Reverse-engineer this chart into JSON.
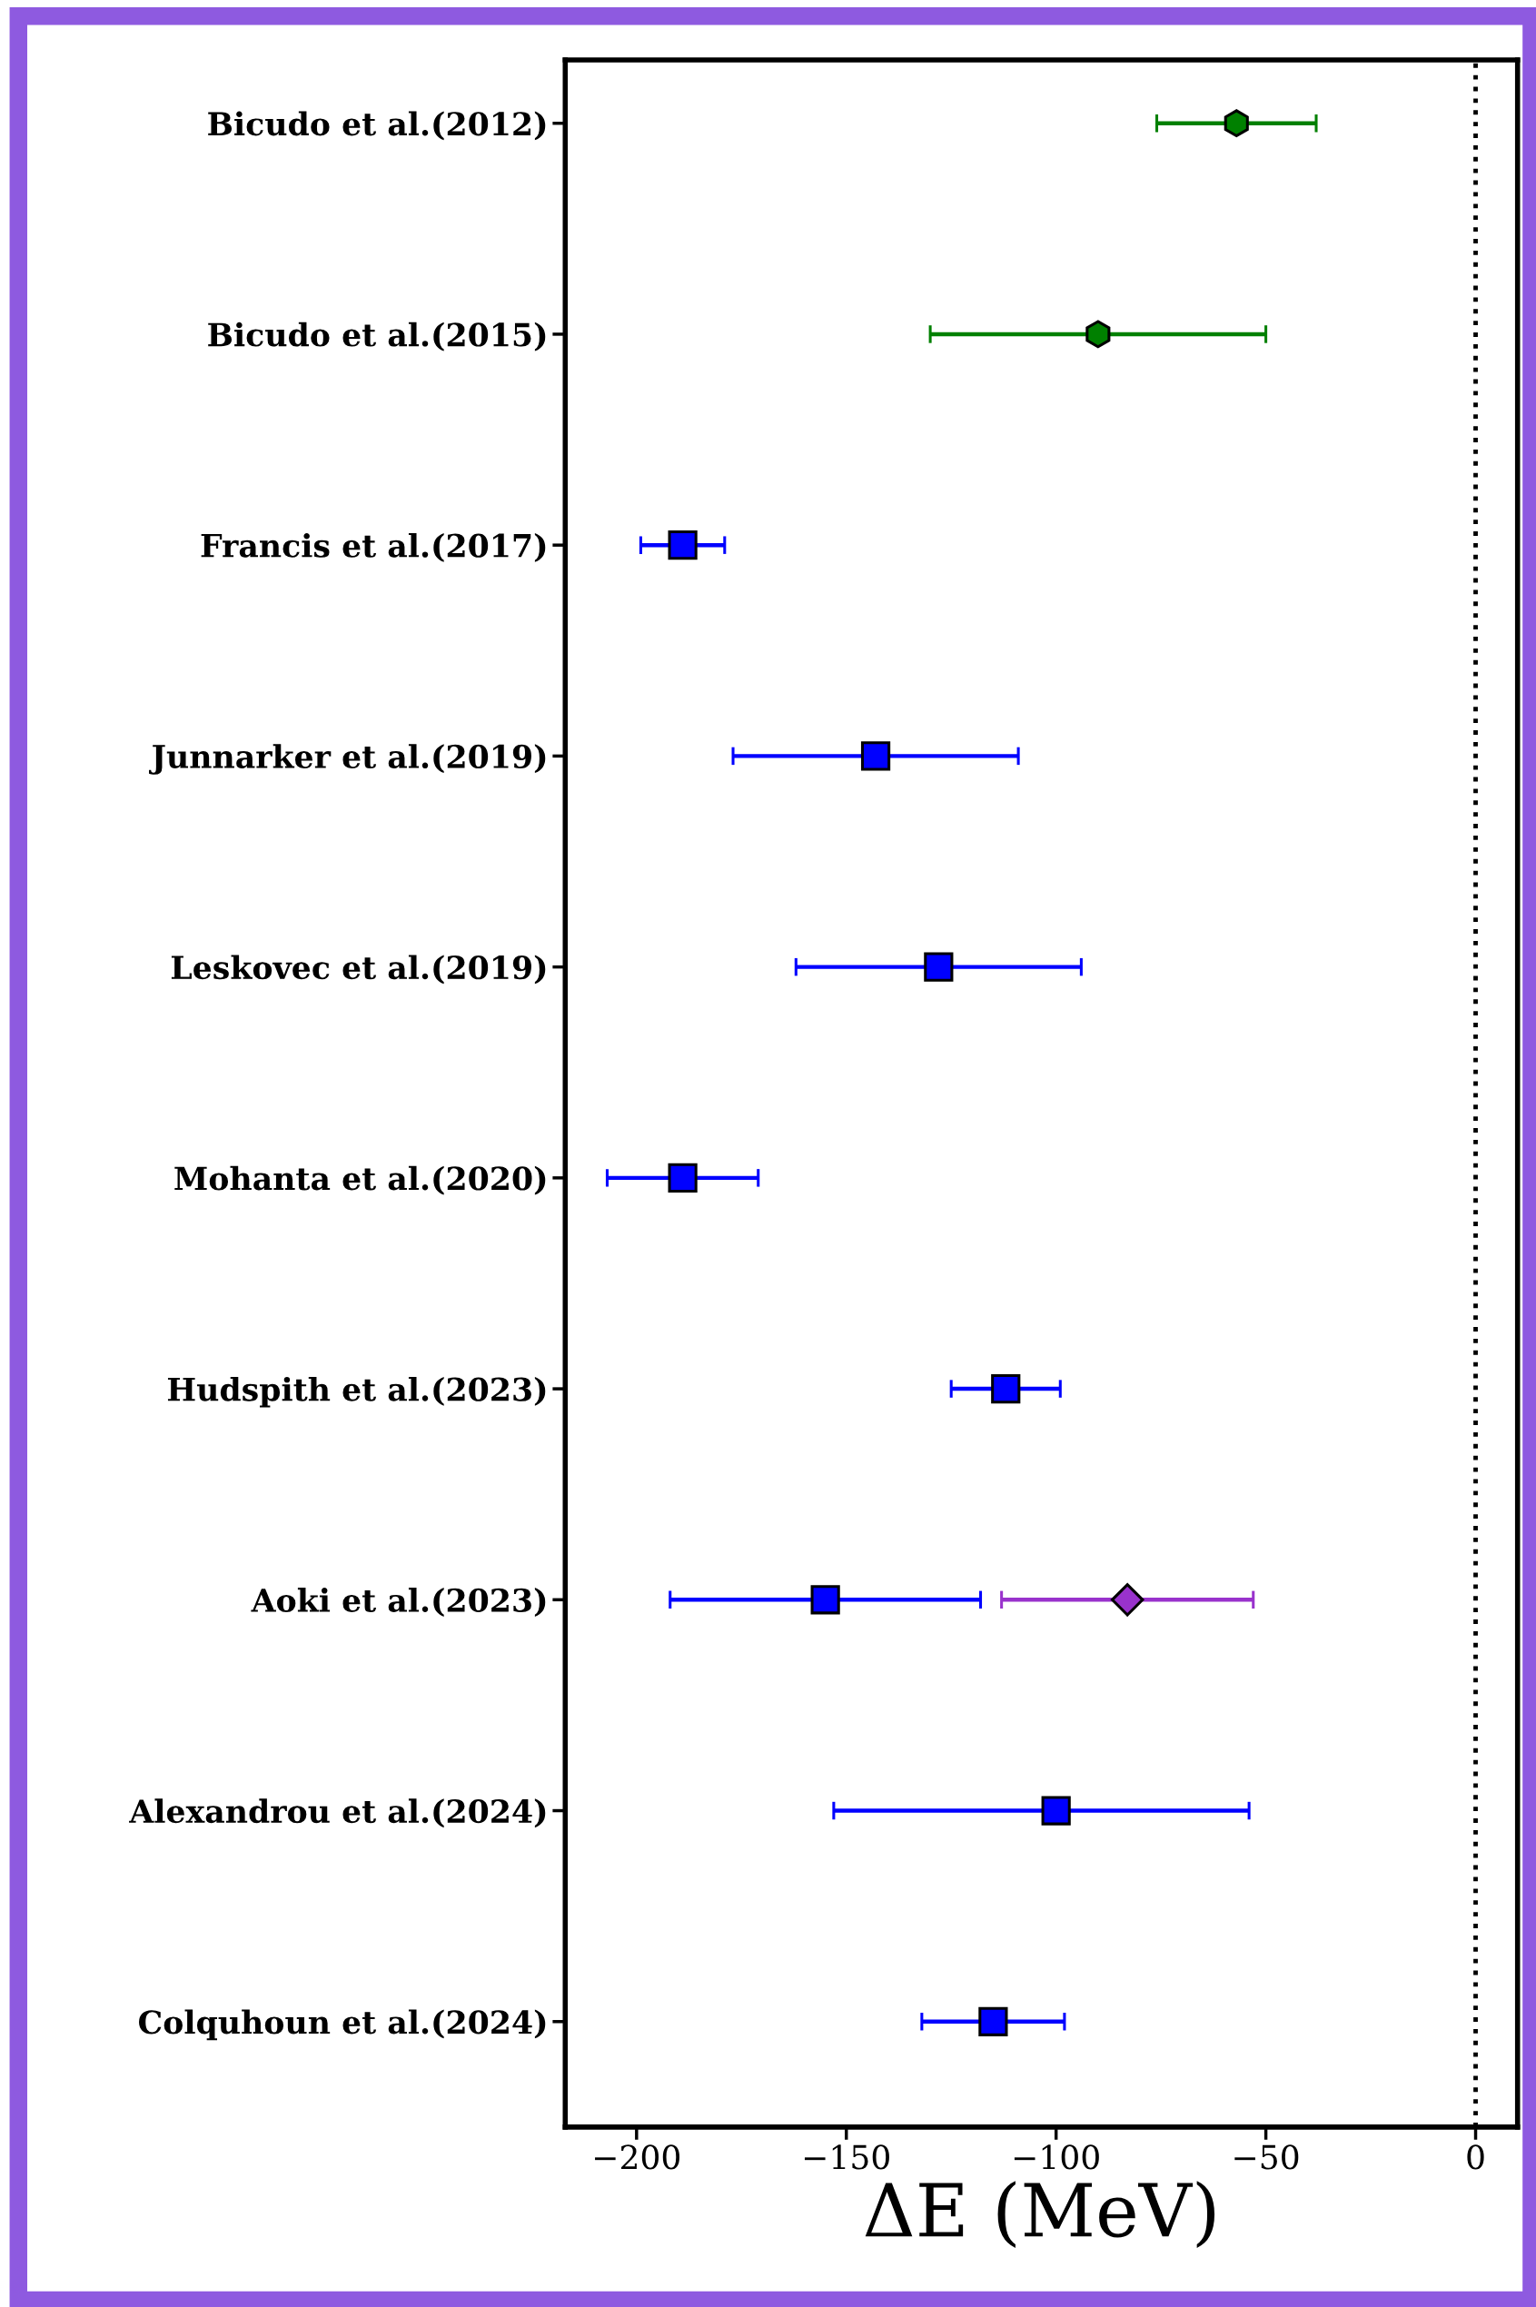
{
  "chart_data": {
    "type": "scatter",
    "orientation": "horizontal",
    "xlabel": "ΔE (MeV)",
    "categories": [
      "Bicudo et al.(2012)",
      "Bicudo et al.(2015)",
      "Francis et al.(2017)",
      "Junnarker et al.(2019)",
      "Leskovec et al.(2019)",
      "Mohanta et al.(2020)",
      "Hudspith et al.(2023)",
      "Aoki et al.(2023)",
      "Alexandrou et al.(2024)",
      "Colquhoun et al.(2024)"
    ],
    "series": [
      {
        "color": "#008000",
        "values": [
          -57,
          -90,
          null,
          null,
          null,
          null,
          null,
          null,
          null,
          null
        ],
        "errors": [
          19,
          40,
          null,
          null,
          null,
          null,
          null,
          null,
          null,
          null
        ]
      },
      {
        "color": "#0000ff",
        "marker": "square",
        "values": [
          null,
          null,
          -189,
          -143,
          -128,
          -189,
          -112,
          -155,
          -100,
          -115
        ],
        "errors": [
          null,
          null,
          10,
          34,
          34,
          18,
          13,
          37,
          [
            -153,
            -54
          ],
          17
        ]
      },
      {
        "color": "#9932cc",
        "marker": "diamond",
        "values": [
          null,
          null,
          null,
          null,
          null,
          null,
          null,
          -83,
          null,
          null
        ],
        "errors": [
          null,
          null,
          null,
          null,
          null,
          null,
          null,
          30,
          null,
          null
        ]
      }
    ],
    "xlim": [
      -217,
      10
    ],
    "xticks": [
      {
        "value": -200,
        "label": "−200"
      },
      {
        "value": -150,
        "label": "−150"
      },
      {
        "value": -100,
        "label": "−100"
      },
      {
        "value": -50,
        "label": "−50"
      },
      0
    ],
    "ref_lines": [
      {
        "axis": "x",
        "value": 0,
        "color": "#000000",
        "line_style": "dotted"
      }
    ],
    "grid": false,
    "legend": false
  }
}
